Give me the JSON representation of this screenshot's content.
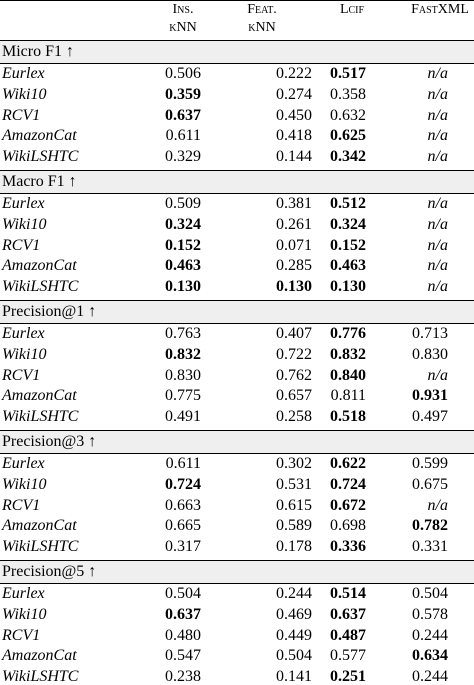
{
  "header": {
    "columns": [
      [
        "Ins.",
        "kNN"
      ],
      [
        "Feat.",
        "kNN"
      ],
      [
        "Lcif"
      ],
      [
        "FastXML"
      ]
    ]
  },
  "sections": [
    {
      "title": "Micro F1 ↑",
      "rows": [
        {
          "label": "Eurlex",
          "values": [
            "0.506",
            "0.222",
            "0.517",
            "n/a"
          ],
          "bold": [
            false,
            false,
            true,
            false
          ]
        },
        {
          "label": "Wiki10",
          "values": [
            "0.359",
            "0.274",
            "0.358",
            "n/a"
          ],
          "bold": [
            true,
            false,
            false,
            false
          ]
        },
        {
          "label": "RCV1",
          "values": [
            "0.637",
            "0.450",
            "0.632",
            "n/a"
          ],
          "bold": [
            true,
            false,
            false,
            false
          ]
        },
        {
          "label": "AmazonCat",
          "values": [
            "0.611",
            "0.418",
            "0.625",
            "n/a"
          ],
          "bold": [
            false,
            false,
            true,
            false
          ]
        },
        {
          "label": "WikiLSHTC",
          "values": [
            "0.329",
            "0.144",
            "0.342",
            "n/a"
          ],
          "bold": [
            false,
            false,
            true,
            false
          ]
        }
      ]
    },
    {
      "title": "Macro F1 ↑",
      "rows": [
        {
          "label": "Eurlex",
          "values": [
            "0.509",
            "0.381",
            "0.512",
            "n/a"
          ],
          "bold": [
            false,
            false,
            true,
            false
          ]
        },
        {
          "label": "Wiki10",
          "values": [
            "0.324",
            "0.261",
            "0.324",
            "n/a"
          ],
          "bold": [
            true,
            false,
            true,
            false
          ]
        },
        {
          "label": "RCV1",
          "values": [
            "0.152",
            "0.071",
            "0.152",
            "n/a"
          ],
          "bold": [
            true,
            false,
            true,
            false
          ]
        },
        {
          "label": "AmazonCat",
          "values": [
            "0.463",
            "0.285",
            "0.463",
            "n/a"
          ],
          "bold": [
            true,
            false,
            true,
            false
          ]
        },
        {
          "label": "WikiLSHTC",
          "values": [
            "0.130",
            "0.130",
            "0.130",
            "n/a"
          ],
          "bold": [
            true,
            true,
            true,
            false
          ]
        }
      ]
    },
    {
      "title": "Precision@1 ↑",
      "rows": [
        {
          "label": "Eurlex",
          "values": [
            "0.763",
            "0.407",
            "0.776",
            "0.713"
          ],
          "bold": [
            false,
            false,
            true,
            false
          ]
        },
        {
          "label": "Wiki10",
          "values": [
            "0.832",
            "0.722",
            "0.832",
            "0.830"
          ],
          "bold": [
            true,
            false,
            true,
            false
          ]
        },
        {
          "label": "RCV1",
          "values": [
            "0.830",
            "0.762",
            "0.840",
            "n/a"
          ],
          "bold": [
            false,
            false,
            true,
            false
          ]
        },
        {
          "label": "AmazonCat",
          "values": [
            "0.775",
            "0.657",
            "0.811",
            "0.931"
          ],
          "bold": [
            false,
            false,
            false,
            true
          ]
        },
        {
          "label": "WikiLSHTC",
          "values": [
            "0.491",
            "0.258",
            "0.518",
            "0.497"
          ],
          "bold": [
            false,
            false,
            true,
            false
          ]
        }
      ]
    },
    {
      "title": "Precision@3 ↑",
      "rows": [
        {
          "label": "Eurlex",
          "values": [
            "0.611",
            "0.302",
            "0.622",
            "0.599"
          ],
          "bold": [
            false,
            false,
            true,
            false
          ]
        },
        {
          "label": "Wiki10",
          "values": [
            "0.724",
            "0.531",
            "0.724",
            "0.675"
          ],
          "bold": [
            true,
            false,
            true,
            false
          ]
        },
        {
          "label": "RCV1",
          "values": [
            "0.663",
            "0.615",
            "0.672",
            "n/a"
          ],
          "bold": [
            false,
            false,
            true,
            false
          ]
        },
        {
          "label": "AmazonCat",
          "values": [
            "0.665",
            "0.589",
            "0.698",
            "0.782"
          ],
          "bold": [
            false,
            false,
            false,
            true
          ]
        },
        {
          "label": "WikiLSHTC",
          "values": [
            "0.317",
            "0.178",
            "0.336",
            "0.331"
          ],
          "bold": [
            false,
            false,
            true,
            false
          ]
        }
      ]
    },
    {
      "title": "Precision@5 ↑",
      "rows": [
        {
          "label": "Eurlex",
          "values": [
            "0.504",
            "0.244",
            "0.514",
            "0.504"
          ],
          "bold": [
            false,
            false,
            true,
            false
          ]
        },
        {
          "label": "Wiki10",
          "values": [
            "0.637",
            "0.469",
            "0.637",
            "0.578"
          ],
          "bold": [
            true,
            false,
            true,
            false
          ]
        },
        {
          "label": "RCV1",
          "values": [
            "0.480",
            "0.449",
            "0.487",
            "0.244"
          ],
          "bold": [
            false,
            false,
            true,
            false
          ]
        },
        {
          "label": "AmazonCat",
          "values": [
            "0.547",
            "0.504",
            "0.577",
            "0.634"
          ],
          "bold": [
            false,
            false,
            false,
            true
          ]
        },
        {
          "label": "WikiLSHTC",
          "values": [
            "0.238",
            "0.141",
            "0.251",
            "0.244"
          ],
          "bold": [
            false,
            false,
            true,
            false
          ]
        }
      ]
    }
  ]
}
